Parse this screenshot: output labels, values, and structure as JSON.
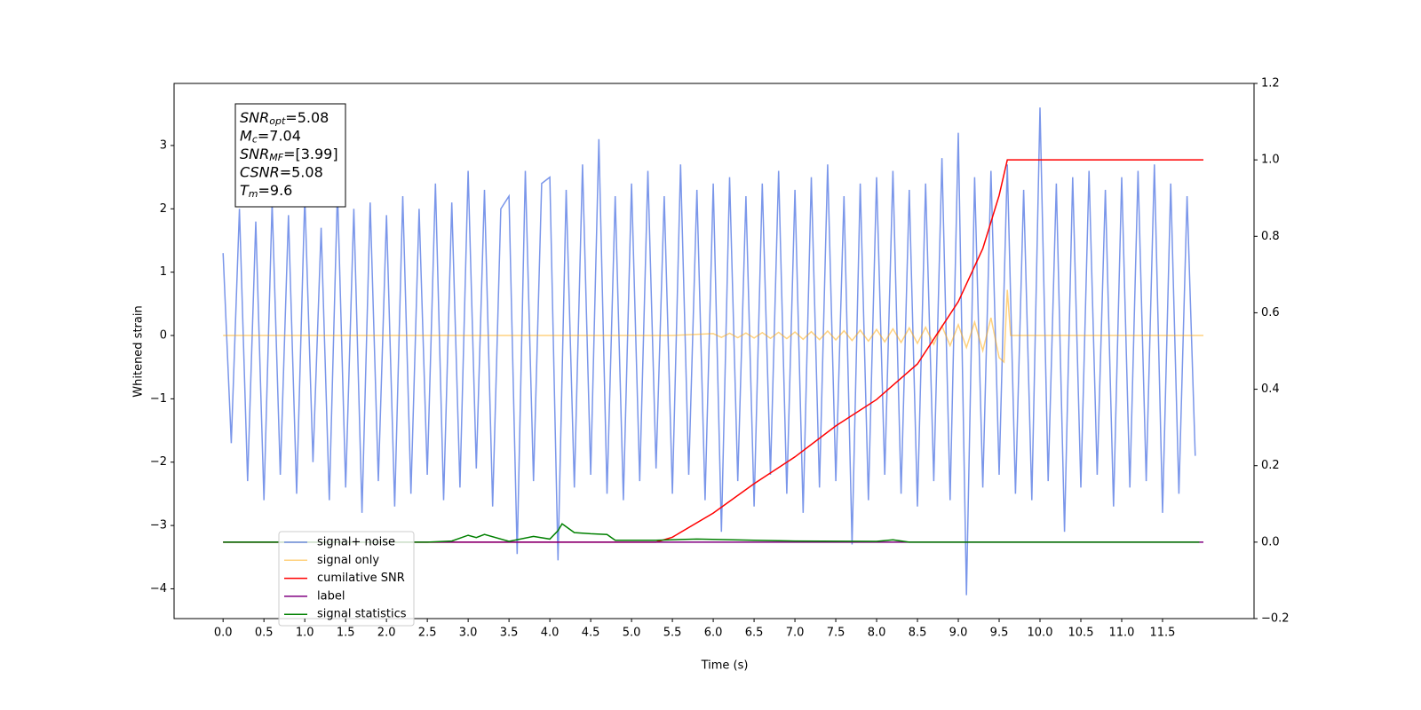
{
  "chart_data": {
    "type": "line",
    "xlabel": "Time (s)",
    "ylabel": "Whitened strain",
    "xlim": [
      -0.6,
      12.62
    ],
    "ylim": [
      -4.47,
      3.98
    ],
    "y2lim": [
      -0.2,
      1.2
    ],
    "xticks": [
      {
        "value": 0,
        "label": "0.0"
      },
      {
        "value": 0.5,
        "label": "0.5"
      },
      {
        "value": 1,
        "label": "1.0"
      },
      {
        "value": 1.5,
        "label": "1.5"
      },
      {
        "value": 2,
        "label": "2.0"
      },
      {
        "value": 2.5,
        "label": "2.5"
      },
      {
        "value": 3,
        "label": "3.0"
      },
      {
        "value": 3.5,
        "label": "3.5"
      },
      {
        "value": 4,
        "label": "4.0"
      },
      {
        "value": 4.5,
        "label": "4.5"
      },
      {
        "value": 5,
        "label": "5.0"
      },
      {
        "value": 5.5,
        "label": "5.5"
      },
      {
        "value": 6,
        "label": "6.0"
      },
      {
        "value": 6.5,
        "label": "6.5"
      },
      {
        "value": 7,
        "label": "7.0"
      },
      {
        "value": 7.5,
        "label": "7.5"
      },
      {
        "value": 8,
        "label": "8.0"
      },
      {
        "value": 8.5,
        "label": "8.5"
      },
      {
        "value": 9,
        "label": "9.0"
      },
      {
        "value": 9.5,
        "label": "9.5"
      },
      {
        "value": 10,
        "label": "10.0"
      },
      {
        "value": 10.5,
        "label": "10.5"
      },
      {
        "value": 11,
        "label": "11.0"
      },
      {
        "value": 11.5,
        "label": "11.5"
      }
    ],
    "yticks": [
      {
        "value": -4,
        "label": "−4"
      },
      {
        "value": -3,
        "label": "−3"
      },
      {
        "value": -2,
        "label": "−2"
      },
      {
        "value": -1,
        "label": "−1"
      },
      0,
      1,
      2,
      3
    ],
    "y2ticks": [
      {
        "value": -0.2,
        "label": "−0.2"
      },
      {
        "value": 0,
        "label": "0.0"
      },
      {
        "value": 0.2,
        "label": "0.2"
      },
      {
        "value": 0.4,
        "label": "0.4"
      },
      {
        "value": 0.6,
        "label": "0.6"
      },
      {
        "value": 0.8,
        "label": "0.8"
      },
      {
        "value": 1,
        "label": "1.0"
      },
      {
        "value": 1.2,
        "label": "1.2"
      }
    ],
    "legend_loc": "lower left",
    "annotation": [
      {
        "base": "SNR",
        "sub": "opt",
        "text": "=5.08"
      },
      {
        "base": "M",
        "sub": "c",
        "text": "=7.04"
      },
      {
        "base": "SNR",
        "sub": "MF",
        "text": "=[3.99]"
      },
      {
        "base": "CSNR",
        "text": "=5.08"
      },
      {
        "base": "T",
        "sub": "m",
        "text": "=9.6"
      }
    ],
    "series": [
      {
        "name": "signal+ noise",
        "color": "#4169e1",
        "alpha": 0.7,
        "x": [
          0,
          0.1,
          0.2,
          0.3,
          0.4,
          0.5,
          0.6,
          0.7,
          0.8,
          0.9,
          1,
          1.1,
          1.2,
          1.3,
          1.4,
          1.5,
          1.6,
          1.7,
          1.8,
          1.9,
          2,
          2.1,
          2.2,
          2.3,
          2.4,
          2.5,
          2.6,
          2.7,
          2.8,
          2.9,
          3,
          3.1,
          3.2,
          3.3,
          3.4,
          3.5,
          3.6,
          3.7,
          3.8,
          3.9,
          4,
          4.1,
          4.2,
          4.3,
          4.4,
          4.5,
          4.6,
          4.7,
          4.8,
          4.9,
          5,
          5.1,
          5.2,
          5.3,
          5.4,
          5.5,
          5.6,
          5.7,
          5.8,
          5.9,
          6,
          6.1,
          6.2,
          6.3,
          6.4,
          6.5,
          6.6,
          6.7,
          6.8,
          6.9,
          7,
          7.1,
          7.2,
          7.3,
          7.4,
          7.5,
          7.6,
          7.7,
          7.8,
          7.9,
          8,
          8.1,
          8.2,
          8.3,
          8.4,
          8.5,
          8.6,
          8.7,
          8.8,
          8.9,
          9,
          9.1,
          9.2,
          9.3,
          9.4,
          9.5,
          9.6,
          9.7,
          9.8,
          9.9,
          10,
          10.1,
          10.2,
          10.3,
          10.4,
          10.5,
          10.6,
          10.7,
          10.8,
          10.9,
          11,
          11.1,
          11.2,
          11.3,
          11.4,
          11.5,
          11.6,
          11.7,
          11.8,
          11.9
        ],
        "values": [
          1.3,
          -1.7,
          2.0,
          -2.3,
          1.8,
          -2.6,
          2.1,
          -2.2,
          1.9,
          -2.5,
          2.2,
          -2.0,
          1.7,
          -2.6,
          2.3,
          -2.4,
          2.0,
          -2.8,
          2.1,
          -2.3,
          1.9,
          -2.7,
          2.2,
          -2.5,
          2.0,
          -2.2,
          2.4,
          -2.6,
          2.1,
          -2.4,
          2.6,
          -2.1,
          2.3,
          -2.7,
          2.0,
          2.2,
          -3.45,
          2.6,
          -2.3,
          2.4,
          2.5,
          -3.55,
          2.3,
          -2.4,
          2.7,
          -2.2,
          3.1,
          -2.5,
          2.2,
          -2.6,
          2.4,
          -2.3,
          2.6,
          -2.1,
          2.2,
          -2.5,
          2.7,
          -2.2,
          2.3,
          -2.6,
          2.4,
          -3.1,
          2.5,
          -2.3,
          2.2,
          -2.7,
          2.4,
          -2.2,
          2.6,
          -2.5,
          2.3,
          -2.8,
          2.5,
          -2.4,
          2.7,
          -2.3,
          2.2,
          -3.3,
          2.4,
          -2.6,
          2.5,
          -2.2,
          2.6,
          -2.5,
          2.3,
          -2.7,
          2.4,
          -2.3,
          2.8,
          -2.6,
          3.2,
          -4.1,
          2.5,
          -2.4,
          2.6,
          -2.2,
          2.7,
          -2.5,
          2.3,
          -2.6,
          3.6,
          -2.3,
          2.4,
          -3.1,
          2.5,
          -2.4,
          2.6,
          -2.2,
          2.3,
          -2.7,
          2.5,
          -2.4,
          2.6,
          -2.3,
          2.7,
          -2.8,
          2.4,
          -2.5,
          2.2,
          -1.9
        ]
      },
      {
        "name": "signal only",
        "color": "#ffa500",
        "alpha": 0.5,
        "x": [
          0,
          5.5,
          6,
          6.1,
          6.2,
          6.3,
          6.4,
          6.5,
          6.6,
          6.7,
          6.8,
          6.9,
          7,
          7.1,
          7.2,
          7.3,
          7.4,
          7.5,
          7.6,
          7.7,
          7.8,
          7.9,
          8,
          8.1,
          8.2,
          8.3,
          8.4,
          8.5,
          8.6,
          8.7,
          8.8,
          8.9,
          9,
          9.1,
          9.2,
          9.3,
          9.4,
          9.5,
          9.56,
          9.6,
          9.64,
          12
        ],
        "values": [
          0,
          0,
          0.03,
          -0.03,
          0.035,
          -0.035,
          0.04,
          -0.04,
          0.045,
          -0.045,
          0.05,
          -0.05,
          0.055,
          -0.06,
          0.06,
          -0.065,
          0.07,
          -0.07,
          0.075,
          -0.08,
          0.085,
          -0.09,
          0.095,
          -0.1,
          0.105,
          -0.11,
          0.12,
          -0.125,
          0.13,
          -0.14,
          0.15,
          -0.16,
          0.17,
          -0.19,
          0.21,
          -0.24,
          0.28,
          -0.35,
          -0.42,
          0.72,
          0,
          0
        ]
      },
      {
        "name": "cumilative SNR",
        "color": "#ff0000",
        "axis": "y2",
        "x": [
          0,
          5.3,
          5.5,
          6,
          6.5,
          7,
          7.5,
          8,
          8.5,
          9,
          9.3,
          9.5,
          9.6,
          12
        ],
        "values": [
          0,
          0,
          0.013,
          0.076,
          0.153,
          0.223,
          0.304,
          0.373,
          0.466,
          0.629,
          0.768,
          0.907,
          1.0,
          1.0
        ]
      },
      {
        "name": "label",
        "color": "#800080",
        "axis": "y2",
        "x": [
          0,
          12
        ],
        "values": [
          0,
          0
        ]
      },
      {
        "name": "signal statistics",
        "color": "#008000",
        "axis": "y2",
        "x": [
          0,
          2.5,
          2.8,
          3,
          3.1,
          3.2,
          3.5,
          3.8,
          4,
          4.1,
          4.15,
          4.3,
          4.5,
          4.7,
          4.8,
          5.3,
          5.8,
          6.5,
          7,
          8,
          8.2,
          8.4,
          11.95
        ],
        "values": [
          0,
          0,
          0.003,
          0.018,
          0.012,
          0.02,
          0.002,
          0.015,
          0.008,
          0.03,
          0.048,
          0.025,
          0.022,
          0.02,
          0.005,
          0.005,
          0.008,
          0.005,
          0.003,
          0.002,
          0.006,
          0,
          0
        ]
      }
    ]
  }
}
